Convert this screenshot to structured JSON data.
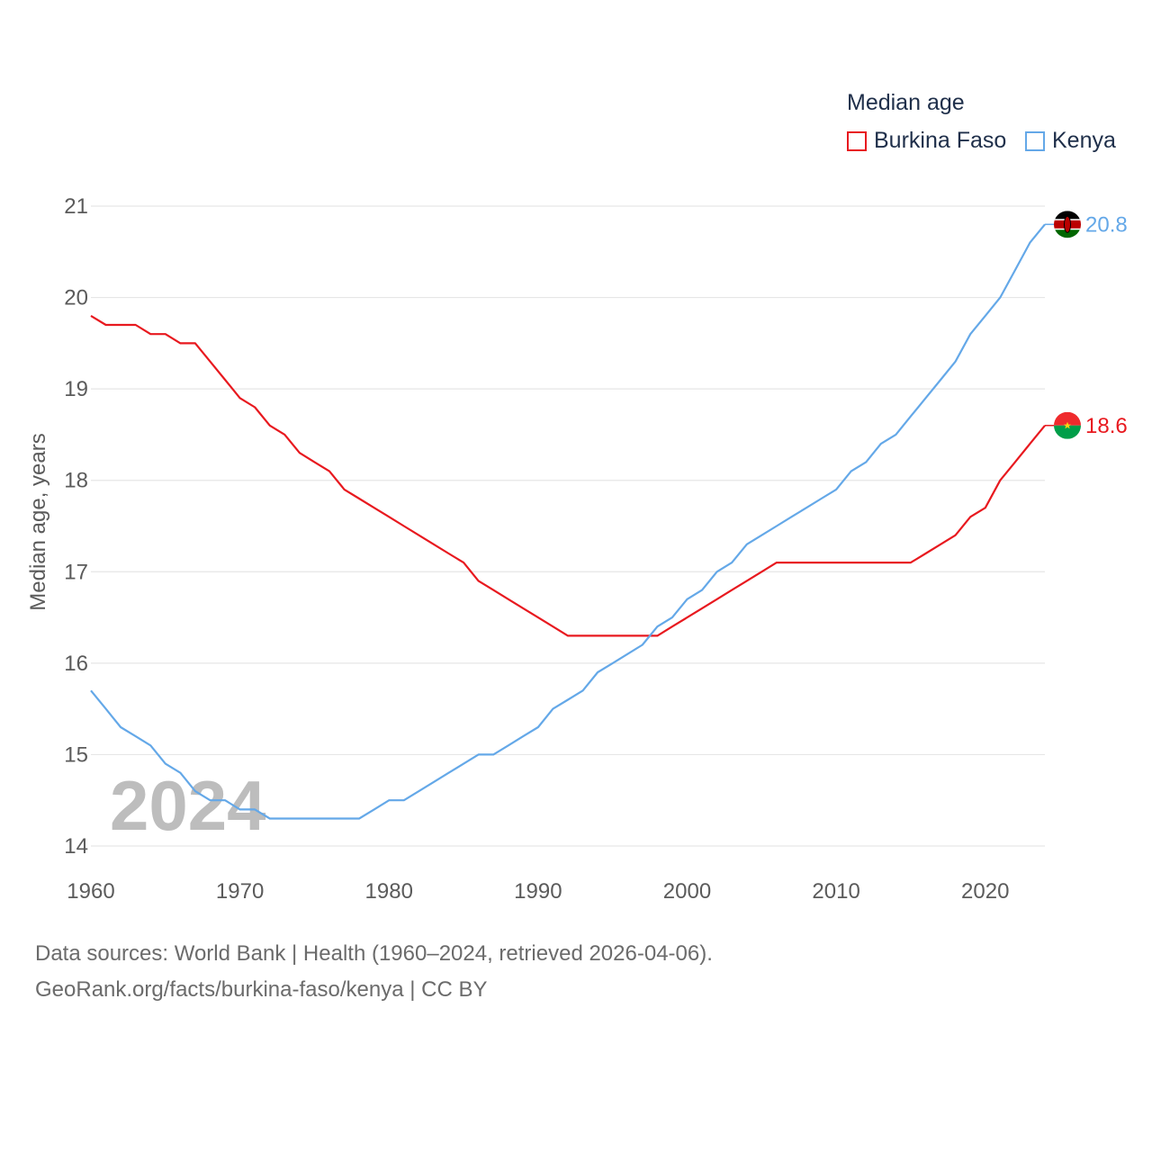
{
  "legend": {
    "title": "Median age",
    "items": [
      {
        "name": "Burkina Faso",
        "color": "#e8191f"
      },
      {
        "name": "Kenya",
        "color": "#64a8e8"
      }
    ]
  },
  "footer": {
    "line1": "Data sources: World Bank | Health (1960–2024, retrieved 2026-04-06).",
    "line2": "GeoRank.org/facts/burkina-faso/kenya | CC BY"
  },
  "chart_data": {
    "type": "line",
    "title": "Median age",
    "xlabel": "",
    "ylabel": "Median age, years",
    "xlim": [
      1960,
      2024
    ],
    "ylim": [
      14,
      21
    ],
    "x_ticks": [
      1960,
      1970,
      1980,
      1990,
      2000,
      2010,
      2020
    ],
    "y_ticks": [
      14,
      15,
      16,
      17,
      18,
      19,
      20,
      21
    ],
    "watermark_year": "2024",
    "x": [
      1960,
      1961,
      1962,
      1963,
      1964,
      1965,
      1966,
      1967,
      1968,
      1969,
      1970,
      1971,
      1972,
      1973,
      1974,
      1975,
      1976,
      1977,
      1978,
      1979,
      1980,
      1981,
      1982,
      1983,
      1984,
      1985,
      1986,
      1987,
      1988,
      1989,
      1990,
      1991,
      1992,
      1993,
      1994,
      1995,
      1996,
      1997,
      1998,
      1999,
      2000,
      2001,
      2002,
      2003,
      2004,
      2005,
      2006,
      2007,
      2008,
      2009,
      2010,
      2011,
      2012,
      2013,
      2014,
      2015,
      2016,
      2017,
      2018,
      2019,
      2020,
      2021,
      2022,
      2023,
      2024
    ],
    "series": [
      {
        "name": "Burkina Faso",
        "color": "#e8191f",
        "end_label": "18.6",
        "values": [
          19.8,
          19.7,
          19.7,
          19.7,
          19.6,
          19.6,
          19.5,
          19.5,
          19.3,
          19.1,
          18.9,
          18.8,
          18.6,
          18.5,
          18.3,
          18.2,
          18.1,
          17.9,
          17.8,
          17.7,
          17.6,
          17.5,
          17.4,
          17.3,
          17.2,
          17.1,
          16.9,
          16.8,
          16.7,
          16.6,
          16.5,
          16.4,
          16.3,
          16.3,
          16.3,
          16.3,
          16.3,
          16.3,
          16.3,
          16.4,
          16.5,
          16.6,
          16.7,
          16.8,
          16.9,
          17.0,
          17.1,
          17.1,
          17.1,
          17.1,
          17.1,
          17.1,
          17.1,
          17.1,
          17.1,
          17.1,
          17.2,
          17.3,
          17.4,
          17.6,
          17.7,
          18.0,
          18.2,
          18.4,
          18.6
        ]
      },
      {
        "name": "Kenya",
        "color": "#64a8e8",
        "end_label": "20.8",
        "values": [
          15.7,
          15.5,
          15.3,
          15.2,
          15.1,
          14.9,
          14.8,
          14.6,
          14.5,
          14.5,
          14.4,
          14.4,
          14.3,
          14.3,
          14.3,
          14.3,
          14.3,
          14.3,
          14.3,
          14.4,
          14.5,
          14.5,
          14.6,
          14.7,
          14.8,
          14.9,
          15.0,
          15.0,
          15.1,
          15.2,
          15.3,
          15.5,
          15.6,
          15.7,
          15.9,
          16.0,
          16.1,
          16.2,
          16.4,
          16.5,
          16.7,
          16.8,
          17.0,
          17.1,
          17.3,
          17.4,
          17.5,
          17.6,
          17.7,
          17.8,
          17.9,
          18.1,
          18.2,
          18.4,
          18.5,
          18.7,
          18.9,
          19.1,
          19.3,
          19.6,
          19.8,
          20.0,
          20.3,
          20.6,
          20.8
        ]
      }
    ]
  }
}
